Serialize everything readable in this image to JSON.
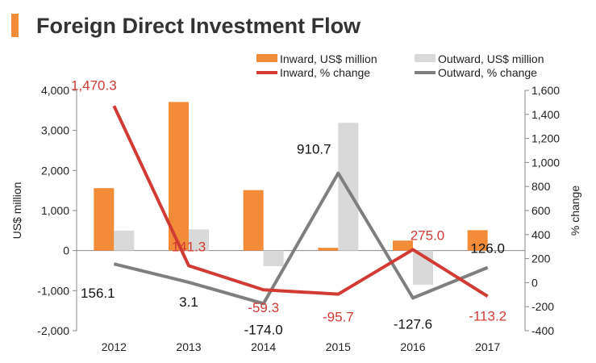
{
  "title": "Foreign Direct Investment Flow",
  "colors": {
    "accent": "#f28c38",
    "inward_bar": "#f28c38",
    "outward_bar": "#d9d9d9",
    "inward_line": "#d13b34",
    "outward_line": "#7f7f7f",
    "label_red": "#d13b34",
    "label_dark": "#111111",
    "axis": "#888888"
  },
  "chart_data": {
    "type": "bar",
    "title": "Foreign Direct Investment Flow",
    "categories": [
      "2012",
      "2013",
      "2014",
      "2015",
      "2016",
      "2017"
    ],
    "ylabel": "US$ million",
    "ylabel_right": "% change",
    "ylim": [
      -2000,
      4000
    ],
    "ylim_right": [
      -400,
      1600
    ],
    "yticks": [
      "4,000",
      "3,000",
      "2,000",
      "1,000",
      "0",
      "-1,000",
      "-2,000"
    ],
    "yticks_values": [
      4000,
      3000,
      2000,
      1000,
      0,
      -1000,
      -2000
    ],
    "yticks_right": [
      "1,600",
      "1,400",
      "1,200",
      "1,000",
      "800",
      "600",
      "400",
      "200",
      "0",
      "-200",
      "-400"
    ],
    "yticks_right_values": [
      1600,
      1400,
      1200,
      1000,
      800,
      600,
      400,
      200,
      0,
      -200,
      -400
    ],
    "legend_position": "top-right",
    "grid": false,
    "series": [
      {
        "name": "Inward, US$ million",
        "kind": "bar",
        "axis": "left",
        "values": [
          1560,
          3710,
          1510,
          70,
          250,
          510
        ]
      },
      {
        "name": "Outward, US$ million",
        "kind": "bar",
        "axis": "left",
        "values": [
          500,
          530,
          -390,
          3190,
          -850,
          0
        ]
      },
      {
        "name": "Inward, % change",
        "kind": "line",
        "axis": "right",
        "values": [
          1470.3,
          141.3,
          -59.3,
          -95.7,
          275.0,
          -113.2
        ],
        "labels": [
          "1,470.3",
          "141.3",
          "-59.3",
          "-95.7",
          "275.0",
          "-113.2"
        ]
      },
      {
        "name": "Outward, % change",
        "kind": "line",
        "axis": "right",
        "values": [
          156.1,
          3.1,
          -174.0,
          910.7,
          -127.6,
          126.0
        ],
        "labels": [
          "156.1",
          "3.1",
          "-174.0",
          "910.7",
          "-127.6",
          "126.0"
        ]
      }
    ]
  }
}
